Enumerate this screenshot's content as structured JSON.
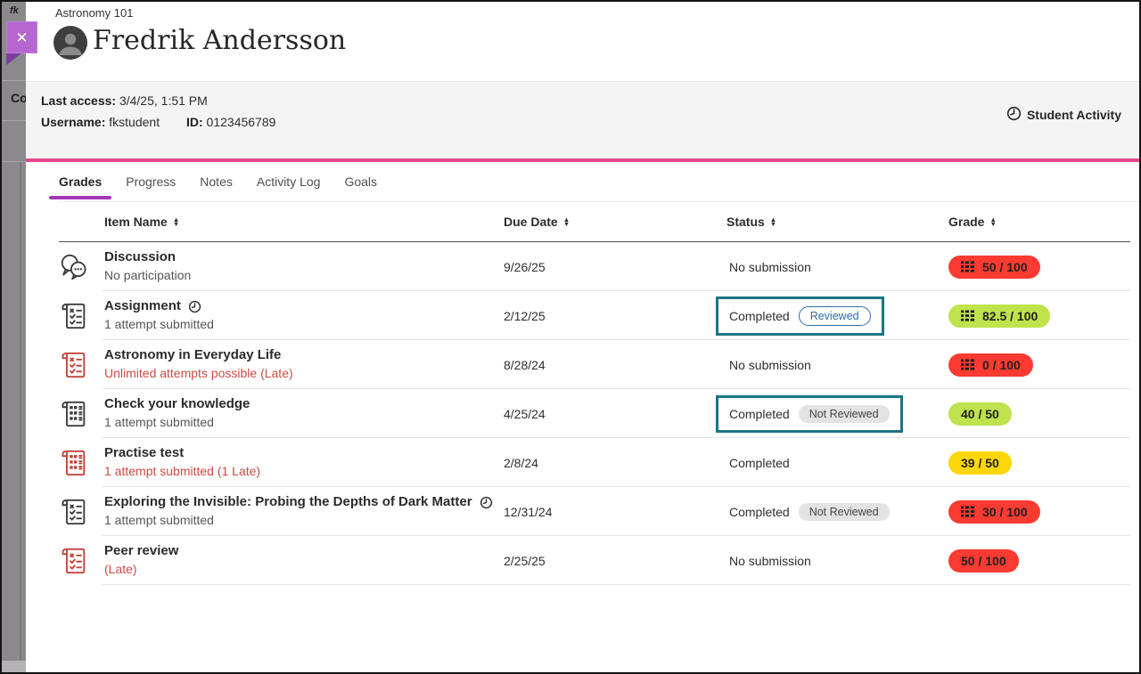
{
  "backdrop": {
    "top_text": "fk",
    "mid_text": "Co"
  },
  "close": {
    "icon": "✕"
  },
  "header": {
    "course": "Astronomy 101",
    "student": "Fredrik Andersson"
  },
  "info": {
    "last_access_label": "Last access:",
    "last_access_value": "3/4/25, 1:51 PM",
    "username_label": "Username:",
    "username_value": "fkstudent",
    "id_label": "ID:",
    "id_value": "0123456789",
    "activity_label": "Student Activity"
  },
  "tabs": [
    {
      "label": "Grades",
      "active": true
    },
    {
      "label": "Progress",
      "active": false
    },
    {
      "label": "Notes",
      "active": false
    },
    {
      "label": "Activity Log",
      "active": false
    },
    {
      "label": "Goals",
      "active": false
    }
  ],
  "table": {
    "headers": [
      "Item Name",
      "Due Date",
      "Status",
      "Grade"
    ],
    "rows": [
      {
        "icon": "discussion-icon",
        "icon_color": "dark",
        "name": "Discussion",
        "clock": false,
        "subtitle": "No participation",
        "subtitle_color": "gray",
        "due": "9/26/25",
        "status": "No submission",
        "chip": null,
        "highlight": false,
        "grade": "50 / 100",
        "grade_color": "red",
        "grade_icon": true
      },
      {
        "icon": "assignment-icon",
        "icon_color": "dark",
        "name": "Assignment",
        "clock": true,
        "subtitle": "1 attempt submitted",
        "subtitle_color": "gray",
        "due": "2/12/25",
        "status": "Completed",
        "chip": {
          "label": "Reviewed",
          "style": "blue"
        },
        "highlight": true,
        "grade": "82.5 / 100",
        "grade_color": "green",
        "grade_icon": true
      },
      {
        "icon": "assignment-icon",
        "icon_color": "red",
        "name": "Astronomy in Everyday Life",
        "clock": false,
        "subtitle": "Unlimited attempts possible (Late)",
        "subtitle_color": "red",
        "due": "8/28/24",
        "status": "No submission",
        "chip": null,
        "highlight": false,
        "grade": "0 / 100",
        "grade_color": "red",
        "grade_icon": true
      },
      {
        "icon": "test-icon",
        "icon_color": "dark",
        "name": "Check your knowledge",
        "clock": false,
        "subtitle": "1 attempt submitted",
        "subtitle_color": "gray",
        "due": "4/25/24",
        "status": "Completed",
        "chip": {
          "label": "Not Reviewed",
          "style": "gray"
        },
        "highlight": true,
        "grade": "40 / 50",
        "grade_color": "green",
        "grade_icon": false
      },
      {
        "icon": "test-icon",
        "icon_color": "red",
        "name": "Practise test",
        "clock": false,
        "subtitle": "1 attempt submitted (1 Late)",
        "subtitle_color": "red",
        "due": "2/8/24",
        "status": "Completed",
        "chip": null,
        "highlight": false,
        "grade": "39 / 50",
        "grade_color": "yellow",
        "grade_icon": false
      },
      {
        "icon": "assignment-icon",
        "icon_color": "dark",
        "name": "Exploring the Invisible: Probing the Depths of Dark Matter",
        "clock": true,
        "subtitle": "1 attempt submitted",
        "subtitle_color": "gray",
        "due": "12/31/24",
        "status": "Completed",
        "chip": {
          "label": "Not Reviewed",
          "style": "gray"
        },
        "highlight": false,
        "grade": "30 / 100",
        "grade_color": "red",
        "grade_icon": true
      },
      {
        "icon": "assignment-icon",
        "icon_color": "red",
        "name": "Peer review",
        "clock": false,
        "subtitle": "(Late)",
        "subtitle_color": "red",
        "due": "2/25/25",
        "status": "No submission",
        "chip": null,
        "highlight": false,
        "grade": "50 / 100",
        "grade_color": "red",
        "grade_icon": false
      }
    ]
  },
  "icons": {
    "sort_up": "▲",
    "sort_down": "▼"
  },
  "colors": {
    "accent_pink": "#e9478f",
    "accent_purple_tab": "#a435b6",
    "close_purple": "#b566cf",
    "highlight_teal": "#1a7585",
    "pill_red": "#fb3a31",
    "pill_green": "#bfe24d",
    "pill_yellow": "#fdd707",
    "chip_blue": "#2e6da4",
    "late_red": "#cc4b45"
  }
}
